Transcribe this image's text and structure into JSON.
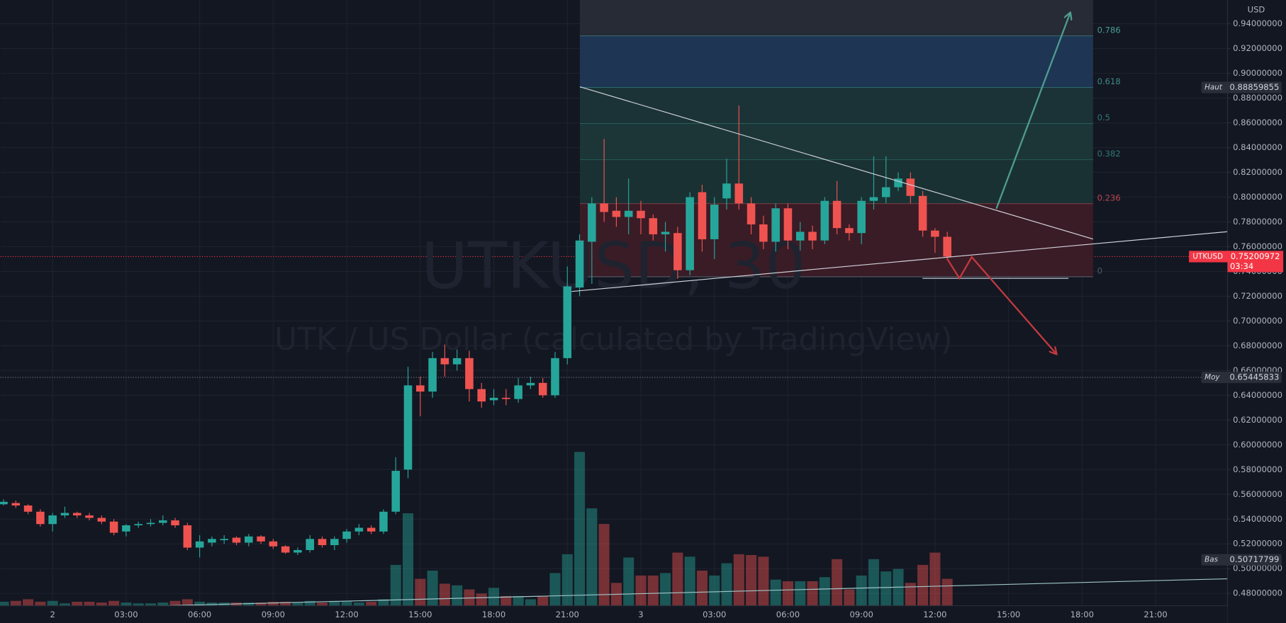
{
  "chart_data": {
    "type": "candlestick",
    "watermark": "UTKUSD, 30",
    "subtitle": "UTK / US Dollar (calculated by TradingView)",
    "y_unit": "USD",
    "up_color": "#26a69a",
    "down_color": "#ef5350",
    "grid": true,
    "categories": [
      null,
      null,
      null,
      null,
      "2",
      null,
      null,
      null,
      null,
      null,
      "03:00",
      null,
      null,
      null,
      null,
      null,
      "06:00",
      null,
      null,
      null,
      null,
      null,
      "09:00",
      null,
      null,
      null,
      null,
      null,
      "12:00",
      null,
      null,
      null,
      null,
      null,
      "15:00",
      null,
      null,
      null,
      null,
      null,
      "18:00",
      null,
      null,
      null,
      null,
      null,
      "21:00",
      null,
      null,
      null,
      null,
      null,
      "3",
      null,
      null,
      null,
      null,
      null,
      "03:00",
      null,
      null,
      null,
      null,
      null,
      "06:00",
      null,
      null,
      null,
      null,
      null,
      "09:00",
      null,
      null,
      null,
      null,
      null,
      "12:00",
      null,
      null,
      null,
      null,
      null,
      "15:00",
      null,
      null,
      null,
      null,
      null,
      "18:00",
      null,
      null,
      null,
      null,
      null,
      "21:00",
      null,
      null,
      null,
      null,
      null
    ],
    "open": [
      0.552,
      0.553,
      0.551,
      0.546,
      0.536,
      0.543,
      0.545,
      0.543,
      0.541,
      0.538,
      0.53,
      0.535,
      0.536,
      0.537,
      0.539,
      0.535,
      0.517,
      0.521,
      0.523,
      0.525,
      0.521,
      0.526,
      0.522,
      0.518,
      0.513,
      0.515,
      0.524,
      0.519,
      0.524,
      0.53,
      0.533,
      0.53,
      0.546,
      0.58,
      0.648,
      0.643,
      0.67,
      0.665,
      0.67,
      0.645,
      0.636,
      0.638,
      0.637,
      0.648,
      0.65,
      0.64,
      0.67,
      0.727,
      0.764,
      0.795,
      0.789,
      0.784,
      0.789,
      0.783,
      0.77,
      0.771,
      0.741,
      0.804,
      0.766,
      0.799,
      0.811,
      0.795,
      0.778,
      0.764,
      0.791,
      0.765,
      0.772,
      0.765,
      0.797,
      0.775,
      0.771,
      0.797,
      0.8,
      0.808,
      0.815,
      0.801,
      0.773,
      0.768,
      null,
      null,
      null,
      null,
      null,
      null,
      null,
      null,
      null,
      null,
      null,
      null,
      null,
      null,
      null,
      null,
      null,
      null,
      null,
      null,
      null,
      null
    ],
    "high": [
      0.556,
      0.555,
      0.552,
      0.548,
      0.545,
      0.55,
      0.546,
      0.545,
      0.543,
      0.54,
      0.536,
      0.538,
      0.54,
      0.543,
      0.541,
      0.537,
      0.527,
      0.526,
      0.527,
      0.526,
      0.528,
      0.527,
      0.524,
      0.519,
      0.517,
      0.527,
      0.526,
      0.526,
      0.532,
      0.536,
      0.535,
      0.548,
      0.59,
      0.663,
      0.655,
      0.675,
      0.681,
      0.677,
      0.676,
      0.65,
      0.645,
      0.645,
      0.654,
      0.655,
      0.654,
      0.675,
      0.744,
      0.77,
      0.8,
      0.847,
      0.8,
      0.815,
      0.797,
      0.786,
      0.78,
      0.776,
      0.804,
      0.81,
      0.8,
      0.831,
      0.874,
      0.8,
      0.785,
      0.795,
      0.795,
      0.78,
      0.777,
      0.8,
      0.813,
      0.778,
      0.8,
      0.833,
      0.833,
      0.82,
      0.82,
      0.805,
      0.775,
      0.772,
      null,
      null,
      null,
      null,
      null,
      null,
      null,
      null,
      null,
      null,
      null,
      null,
      null,
      null,
      null,
      null,
      null,
      null,
      null,
      null,
      null,
      null
    ],
    "low": [
      0.551,
      0.549,
      0.544,
      0.534,
      0.53,
      0.541,
      0.541,
      0.539,
      0.536,
      0.527,
      0.526,
      0.533,
      0.534,
      0.535,
      0.533,
      0.515,
      0.509,
      0.518,
      0.52,
      0.519,
      0.518,
      0.52,
      0.516,
      0.512,
      0.511,
      0.513,
      0.517,
      0.515,
      0.521,
      0.527,
      0.528,
      0.528,
      0.544,
      0.573,
      0.623,
      0.638,
      0.655,
      0.66,
      0.635,
      0.63,
      0.632,
      0.632,
      0.634,
      0.645,
      0.638,
      0.638,
      0.665,
      0.72,
      0.73,
      0.78,
      0.776,
      0.77,
      0.77,
      0.765,
      0.756,
      0.734,
      0.737,
      0.756,
      0.75,
      0.79,
      0.79,
      0.77,
      0.758,
      0.756,
      0.758,
      0.757,
      0.758,
      0.762,
      0.77,
      0.765,
      0.762,
      0.79,
      0.795,
      0.805,
      0.795,
      0.768,
      0.755,
      0.749,
      null,
      null,
      null,
      null,
      null,
      null,
      null,
      null,
      null,
      null,
      null,
      null,
      null,
      null,
      null,
      null,
      null,
      null,
      null,
      null,
      null,
      null
    ],
    "close": [
      0.554,
      0.551,
      0.546,
      0.536,
      0.543,
      0.545,
      0.543,
      0.541,
      0.538,
      0.529,
      0.535,
      0.536,
      0.537,
      0.539,
      0.535,
      0.517,
      0.522,
      0.524,
      0.524,
      0.521,
      0.526,
      0.522,
      0.518,
      0.513,
      0.515,
      0.524,
      0.519,
      0.524,
      0.53,
      0.533,
      0.53,
      0.546,
      0.579,
      0.648,
      0.643,
      0.67,
      0.665,
      0.67,
      0.645,
      0.635,
      0.638,
      0.637,
      0.648,
      0.65,
      0.64,
      0.67,
      0.728,
      0.765,
      0.795,
      0.788,
      0.784,
      0.789,
      0.783,
      0.77,
      0.772,
      0.741,
      0.8,
      0.766,
      0.794,
      0.811,
      0.795,
      0.778,
      0.764,
      0.791,
      0.765,
      0.772,
      0.765,
      0.797,
      0.775,
      0.771,
      0.797,
      0.8,
      0.808,
      0.815,
      0.801,
      0.773,
      0.768,
      0.752,
      null,
      null,
      null,
      null,
      null,
      null,
      null,
      null,
      null,
      null,
      null,
      null,
      null,
      null,
      null,
      null,
      null,
      null,
      null,
      null,
      null,
      null
    ],
    "volume": [
      5,
      6,
      8,
      5,
      6,
      3,
      5,
      5,
      4,
      6,
      4,
      3,
      3,
      4,
      6,
      8,
      5,
      4,
      4,
      4,
      4,
      4,
      5,
      5,
      4,
      6,
      4,
      6,
      6,
      4,
      5,
      8,
      50,
      113,
      33,
      43,
      27,
      25,
      20,
      15,
      22,
      12,
      12,
      8,
      12,
      40,
      63,
      188,
      119,
      100,
      28,
      59,
      37,
      37,
      40,
      65,
      60,
      43,
      37,
      52,
      63,
      62,
      60,
      32,
      30,
      30,
      30,
      35,
      57,
      20,
      37,
      57,
      42,
      45,
      28,
      50,
      65,
      33,
      null,
      null,
      null,
      null,
      null,
      null,
      null,
      null,
      null,
      null,
      null,
      null,
      null,
      null,
      null,
      null,
      null,
      null,
      null,
      null,
      null,
      null
    ],
    "volume_lim": [
      0,
      200
    ],
    "ylim": [
      0.47,
      0.9592
    ],
    "yticks": [
      {
        "value": 0.48,
        "label": "0.48000000"
      },
      {
        "value": 0.5,
        "label": "0.50000000"
      },
      {
        "value": 0.52,
        "label": "0.52000000"
      },
      {
        "value": 0.54,
        "label": "0.54000000"
      },
      {
        "value": 0.56,
        "label": "0.56000000"
      },
      {
        "value": 0.58,
        "label": "0.58000000"
      },
      {
        "value": 0.6,
        "label": "0.60000000"
      },
      {
        "value": 0.62,
        "label": "0.62000000"
      },
      {
        "value": 0.64,
        "label": "0.64000000"
      },
      {
        "value": 0.66,
        "label": "0.66000000"
      },
      {
        "value": 0.68,
        "label": "0.68000000"
      },
      {
        "value": 0.7,
        "label": "0.70000000"
      },
      {
        "value": 0.72,
        "label": "0.72000000"
      },
      {
        "value": 0.74,
        "label": "0.74000000"
      },
      {
        "value": 0.76,
        "label": "0.76000000"
      },
      {
        "value": 0.78,
        "label": "0.78000000"
      },
      {
        "value": 0.8,
        "label": "0.80000000"
      },
      {
        "value": 0.82,
        "label": "0.82000000"
      },
      {
        "value": 0.84,
        "label": "0.84000000"
      },
      {
        "value": 0.86,
        "label": "0.86000000"
      },
      {
        "value": 0.88,
        "label": "0.88000000"
      },
      {
        "value": 0.9,
        "label": "0.90000000"
      },
      {
        "value": 0.92,
        "label": "0.92000000"
      },
      {
        "value": 0.94,
        "label": "0.94000000"
      }
    ],
    "fib_levels": [
      {
        "level": 0.786,
        "price": 0.93,
        "color": "#4a9a94",
        "fill": "#262b36"
      },
      {
        "level": 0.618,
        "price": 0.8884,
        "color": "#3d8c86",
        "fill": "#1e3554"
      },
      {
        "level": 0.5,
        "price": 0.8593,
        "color": "#2f7a75",
        "fill": "#1b3336"
      },
      {
        "level": 0.382,
        "price": 0.8302,
        "color": "#2f7a75",
        "fill": "#1c3638"
      },
      {
        "level": 0.236,
        "price": 0.7945,
        "color": "#b8474d",
        "fill": "#1a3133"
      },
      {
        "level": 0,
        "price": 0.7357,
        "color": "#555a66",
        "fill": "#3a1c26"
      }
    ],
    "markers": [
      {
        "name": "Haut",
        "value": 0.88859855,
        "color": "#2a2e39",
        "line": false
      },
      {
        "name": "Moy",
        "value": 0.65445833,
        "color": "#2a2e39",
        "line": true
      },
      {
        "name": "Bas",
        "value": 0.50717799,
        "color": "#2a2e39",
        "line": false
      }
    ],
    "last_price": {
      "name": "UTKUSD",
      "value": 0.75200972,
      "countdown": "03:34",
      "color": "#f23645"
    }
  }
}
